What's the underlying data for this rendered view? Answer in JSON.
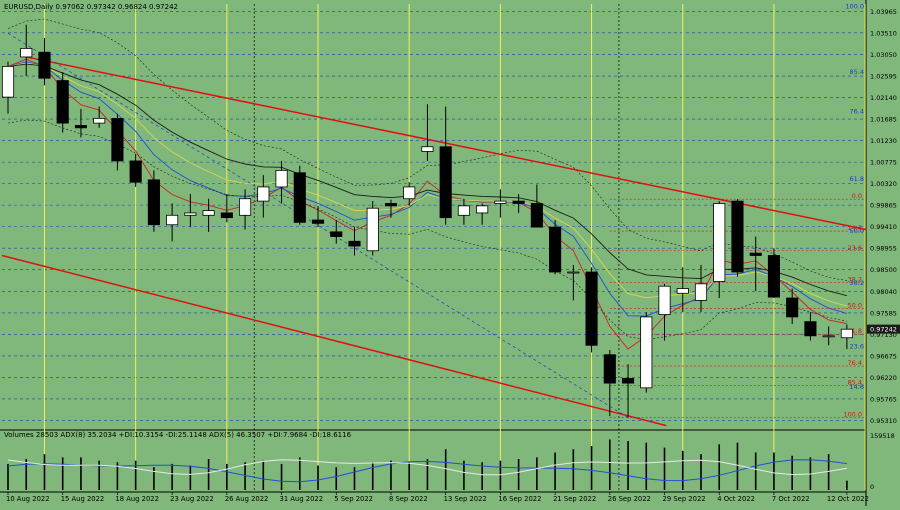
{
  "chart_data": {
    "type": "candlestick",
    "header": "EURUSD,Daily  0.97062 0.97342 0.96824 0.97242",
    "price_axis": [
      "1.03965",
      "1.03510",
      "1.03050",
      "1.02595",
      "1.02140",
      "1.01685",
      "1.01230",
      "1.00775",
      "1.00320",
      "0.99865",
      "0.99410",
      "0.98955",
      "0.98500",
      "0.98040",
      "0.97585",
      "0.97130",
      "0.96675",
      "0.96220",
      "0.95765",
      "0.95310"
    ],
    "last_price": "0.97242",
    "ylim": [
      0.9515,
      1.0412
    ],
    "dates": [
      "10 Aug 2022",
      "15 Aug 2022",
      "18 Aug 2022",
      "23 Aug 2022",
      "26 Aug 2022",
      "31 Aug 2022",
      "5 Sep 2022",
      "8 Sep 2022",
      "13 Sep 2022",
      "16 Sep 2022",
      "21 Sep 2022",
      "26 Sep 2022",
      "29 Sep 2022",
      "4 Oct 2022",
      "7 Oct 2022",
      "12 Oct 2022"
    ],
    "candles": [
      {
        "o": 1.0215,
        "h": 1.029,
        "l": 1.018,
        "c": 1.028
      },
      {
        "o": 1.03,
        "h": 1.0368,
        "l": 1.026,
        "c": 1.0318
      },
      {
        "o": 1.031,
        "h": 1.034,
        "l": 1.024,
        "c": 1.0255
      },
      {
        "o": 1.025,
        "h": 1.0268,
        "l": 1.014,
        "c": 1.016
      },
      {
        "o": 1.0155,
        "h": 1.019,
        "l": 1.013,
        "c": 1.015
      },
      {
        "o": 1.016,
        "h": 1.0195,
        "l": 1.015,
        "c": 1.017
      },
      {
        "o": 1.017,
        "h": 1.018,
        "l": 1.006,
        "c": 1.008
      },
      {
        "o": 1.008,
        "h": 1.0095,
        "l": 1.0025,
        "c": 1.0035
      },
      {
        "o": 1.004,
        "h": 1.006,
        "l": 0.993,
        "c": 0.9945
      },
      {
        "o": 0.9945,
        "h": 0.999,
        "l": 0.991,
        "c": 0.9965
      },
      {
        "o": 0.9965,
        "h": 1.001,
        "l": 0.994,
        "c": 0.997
      },
      {
        "o": 0.9965,
        "h": 1.0,
        "l": 0.993,
        "c": 0.9975
      },
      {
        "o": 0.997,
        "h": 1.001,
        "l": 0.995,
        "c": 0.996
      },
      {
        "o": 0.9965,
        "h": 1.002,
        "l": 0.9935,
        "c": 1.0
      },
      {
        "o": 0.9995,
        "h": 1.005,
        "l": 0.996,
        "c": 1.0025
      },
      {
        "o": 1.0025,
        "h": 1.008,
        "l": 0.999,
        "c": 1.006
      },
      {
        "o": 1.0055,
        "h": 1.007,
        "l": 0.9945,
        "c": 0.995
      },
      {
        "o": 0.9955,
        "h": 0.9985,
        "l": 0.994,
        "c": 0.9948
      },
      {
        "o": 0.993,
        "h": 0.9955,
        "l": 0.9905,
        "c": 0.992
      },
      {
        "o": 0.991,
        "h": 0.994,
        "l": 0.988,
        "c": 0.99
      },
      {
        "o": 0.989,
        "h": 0.9995,
        "l": 0.988,
        "c": 0.998
      },
      {
        "o": 0.999,
        "h": 0.9998,
        "l": 0.996,
        "c": 0.9985
      },
      {
        "o": 1.0,
        "h": 1.0035,
        "l": 0.9985,
        "c": 1.0025
      },
      {
        "o": 1.01,
        "h": 1.02,
        "l": 1.008,
        "c": 1.011
      },
      {
        "o": 1.011,
        "h": 1.0195,
        "l": 0.9945,
        "c": 0.996
      },
      {
        "o": 0.9965,
        "h": 1.0,
        "l": 0.9945,
        "c": 0.9985
      },
      {
        "o": 0.997,
        "h": 0.999,
        "l": 0.9945,
        "c": 0.9985
      },
      {
        "o": 0.999,
        "h": 1.002,
        "l": 0.996,
        "c": 0.9995
      },
      {
        "o": 0.9995,
        "h": 1.001,
        "l": 0.997,
        "c": 0.999
      },
      {
        "o": 0.999,
        "h": 1.003,
        "l": 0.994,
        "c": 0.994
      },
      {
        "o": 0.994,
        "h": 0.9955,
        "l": 0.984,
        "c": 0.9845
      },
      {
        "o": 0.9845,
        "h": 0.986,
        "l": 0.9785,
        "c": 0.9845
      },
      {
        "o": 0.9845,
        "h": 0.9855,
        "l": 0.9675,
        "c": 0.969
      },
      {
        "o": 0.967,
        "h": 0.968,
        "l": 0.954,
        "c": 0.961
      },
      {
        "o": 0.962,
        "h": 0.965,
        "l": 0.9537,
        "c": 0.961
      },
      {
        "o": 0.96,
        "h": 0.976,
        "l": 0.959,
        "c": 0.975
      },
      {
        "o": 0.9755,
        "h": 0.982,
        "l": 0.97,
        "c": 0.9815
      },
      {
        "o": 0.98,
        "h": 0.9855,
        "l": 0.976,
        "c": 0.981
      },
      {
        "o": 0.9785,
        "h": 0.986,
        "l": 0.976,
        "c": 0.982
      },
      {
        "o": 0.9825,
        "h": 0.9995,
        "l": 0.979,
        "c": 0.999
      },
      {
        "o": 0.9995,
        "h": 0.9999,
        "l": 0.9835,
        "c": 0.9845
      },
      {
        "o": 0.9885,
        "h": 0.992,
        "l": 0.9805,
        "c": 0.988
      },
      {
        "o": 0.988,
        "h": 0.9895,
        "l": 0.979,
        "c": 0.9792
      },
      {
        "o": 0.979,
        "h": 0.981,
        "l": 0.9735,
        "c": 0.975
      },
      {
        "o": 0.974,
        "h": 0.976,
        "l": 0.97,
        "c": 0.971
      },
      {
        "o": 0.971,
        "h": 0.973,
        "l": 0.969,
        "c": 0.971
      },
      {
        "o": 0.9706,
        "h": 0.9734,
        "l": 0.9682,
        "c": 0.9724
      }
    ],
    "fib_retracement": {
      "labels": [
        "0.0",
        "14.6",
        "23.6",
        "38.2",
        "50.0",
        "61.8",
        "76.4",
        "85.4",
        "100.0"
      ]
    },
    "fib_left": {
      "labels": [
        "100.0",
        "85.4",
        "76.4",
        "61.8",
        "50.0",
        "38.2",
        "23.6",
        "14.6"
      ]
    },
    "indicator": {
      "header": "Volumes 28503  ADX(8) 35.2034 +DI:10.3154 -DI:25.1148  ADX(5) 46.3507 +DI:7.9684 -DI:18.6116",
      "axis_labels": [
        "159518",
        "0"
      ],
      "volumes": [
        80000,
        95000,
        110000,
        100000,
        100000,
        90000,
        85000,
        90000,
        70000,
        80000,
        75000,
        95000,
        80000,
        85000,
        90000,
        80000,
        100000,
        75000,
        70000,
        70000,
        85000,
        90000,
        85000,
        95000,
        125000,
        90000,
        85000,
        90000,
        95000,
        100000,
        115000,
        125000,
        135000,
        155000,
        150000,
        145000,
        130000,
        120000,
        110000,
        140000,
        145000,
        115000,
        115000,
        105000,
        100000,
        110000,
        28503
      ]
    },
    "colors": {
      "background": "#7fb87a",
      "grid_blue": "#1a3bd0",
      "vline_yellow": "#f2f25a",
      "channel_red": "#e01010",
      "ma_black": "#1a1a1a",
      "ma_blue": "#1e4fd8",
      "ma_yellow": "#d8d850",
      "ma_red": "#d02020",
      "bear_candle": "#000000",
      "bull_candle": "#ffffff"
    }
  }
}
